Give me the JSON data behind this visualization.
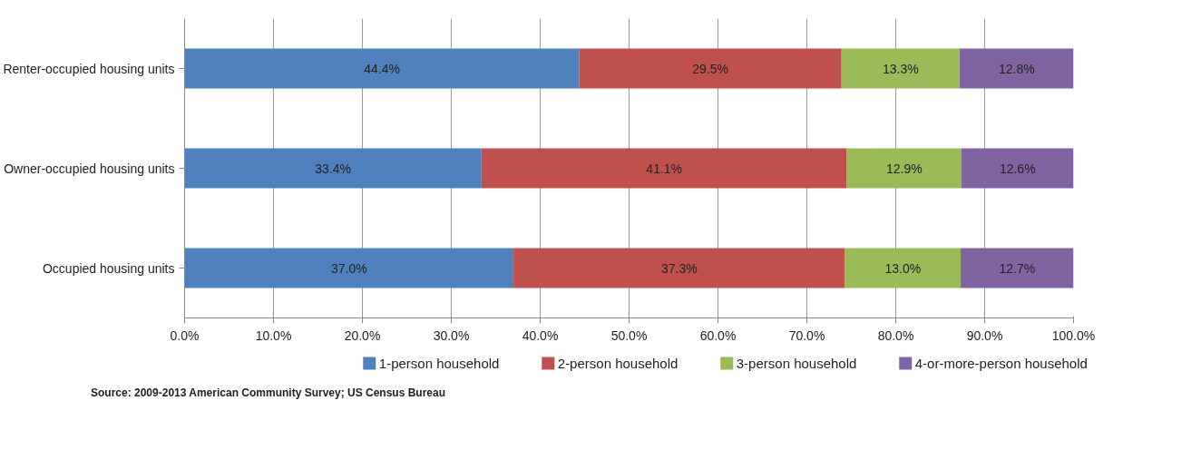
{
  "chart_data": {
    "type": "bar",
    "orientation": "horizontal",
    "stacked": true,
    "categories": [
      "Renter-occupied housing units",
      "Owner-occupied housing units",
      "Occupied housing units"
    ],
    "series": [
      {
        "name": "1-person household",
        "color": "#4f81bd",
        "values": [
          44.4,
          33.4,
          37.0
        ],
        "value_labels": [
          "44.4%",
          "33.4%",
          "37.0%"
        ]
      },
      {
        "name": "2-person household",
        "color": "#c0504d",
        "values": [
          29.5,
          41.1,
          37.3
        ],
        "value_labels": [
          "29.5%",
          "41.1%",
          "37.3%"
        ]
      },
      {
        "name": "3-person household",
        "color": "#9bbb59",
        "values": [
          13.3,
          12.9,
          13.0
        ],
        "value_labels": [
          "13.3%",
          "12.9%",
          "13.0%"
        ]
      },
      {
        "name": "4-or-more-person household",
        "color": "#8064a2",
        "values": [
          12.8,
          12.6,
          12.7
        ],
        "value_labels": [
          "12.8%",
          "12.6%",
          "12.7%"
        ]
      }
    ],
    "xlim": [
      0,
      100
    ],
    "xticks": [
      {
        "value": 0,
        "label": "0.0%"
      },
      {
        "value": 10,
        "label": "10.0%"
      },
      {
        "value": 20,
        "label": "20.0%"
      },
      {
        "value": 30,
        "label": "30.0%"
      },
      {
        "value": 40,
        "label": "40.0%"
      },
      {
        "value": 50,
        "label": "50.0%"
      },
      {
        "value": 60,
        "label": "60.0%"
      },
      {
        "value": 70,
        "label": "70.0%"
      },
      {
        "value": 80,
        "label": "80.0%"
      },
      {
        "value": 90,
        "label": "90.0%"
      },
      {
        "value": 100,
        "label": "100.0%"
      }
    ],
    "grid": "x",
    "legend": "bottom",
    "annotations": [
      "Source: 2009-2013 American Community Survey; US Census Bureau"
    ]
  }
}
